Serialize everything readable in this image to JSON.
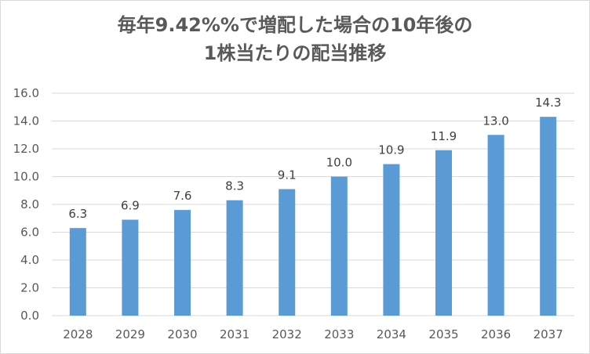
{
  "chart_data": {
    "type": "bar",
    "title_lines": [
      "毎年9.42%%で増配した場合の10年後の",
      "1株当たりの配当推移"
    ],
    "categories": [
      "2028",
      "2029",
      "2030",
      "2031",
      "2032",
      "2033",
      "2034",
      "2035",
      "2036",
      "2037"
    ],
    "values": [
      6.3,
      6.9,
      7.6,
      8.3,
      9.1,
      10.0,
      10.9,
      11.9,
      13.0,
      14.3
    ],
    "value_labels": [
      "6.3",
      "6.9",
      "7.6",
      "8.3",
      "9.1",
      "10.0",
      "10.9",
      "11.9",
      "13.0",
      "14.3"
    ],
    "ylim": [
      0,
      16
    ],
    "y_ticks": [
      "0.0",
      "2.0",
      "4.0",
      "6.0",
      "8.0",
      "10.0",
      "12.0",
      "14.0",
      "16.0"
    ],
    "xlabel": "",
    "ylabel": "",
    "grid": "horizontal",
    "legend": "none",
    "bar_color": "#5b9bd5",
    "grid_color": "#d9d9d9"
  }
}
